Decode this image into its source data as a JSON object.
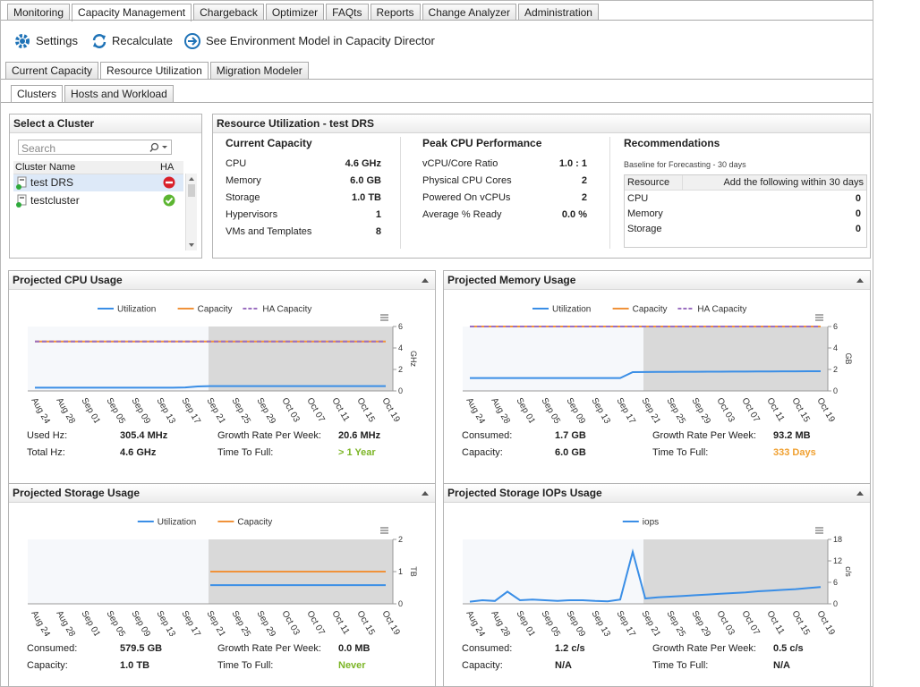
{
  "top_tabs": [
    "Monitoring",
    "Capacity Management",
    "Chargeback",
    "Optimizer",
    "FAQts",
    "Reports",
    "Change Analyzer",
    "Administration"
  ],
  "active_top_tab": 1,
  "toolbar": {
    "settings": "Settings",
    "recalculate": "Recalculate",
    "environment": "See Environment Model in Capacity Director"
  },
  "sub_tabs": [
    "Current Capacity",
    "Resource Utilization",
    "Migration Modeler"
  ],
  "active_sub_tab": 1,
  "inner_tabs": [
    "Clusters",
    "Hosts and Workload"
  ],
  "active_inner_tab": 0,
  "cluster_panel": {
    "title": "Select a Cluster",
    "search": "Search",
    "columns": [
      "Cluster Name",
      "HA"
    ],
    "rows": [
      {
        "name": "test DRS",
        "ha": "error",
        "selected": true
      },
      {
        "name": "testcluster",
        "ha": "ok",
        "selected": false
      }
    ]
  },
  "summary": {
    "title": "Resource Utilization - test DRS",
    "sections": [
      {
        "title": "Current Capacity",
        "rows": [
          [
            "CPU",
            "4.6 GHz"
          ],
          [
            "Memory",
            "6.0 GB"
          ],
          [
            "Storage",
            "1.0 TB"
          ],
          [
            "Hypervisors",
            "1"
          ],
          [
            "VMs and Templates",
            "8"
          ]
        ]
      },
      {
        "title": "Peak CPU Performance",
        "rows": [
          [
            "vCPU/Core Ratio",
            "1.0 : 1"
          ],
          [
            "Physical CPU Cores",
            "2"
          ],
          [
            "Powered On vCPUs",
            "2"
          ],
          [
            "Average % Ready",
            "0.0 %"
          ]
        ]
      }
    ],
    "recommendations": {
      "title": "Recommendations",
      "note": "Baseline for Forecasting - 30 days",
      "columns": [
        "Resource",
        "Add the following within 30 days"
      ],
      "rows": [
        [
          "CPU",
          "0"
        ],
        [
          "Memory",
          "0"
        ],
        [
          "Storage",
          "0"
        ]
      ]
    }
  },
  "chart_data": [
    {
      "type": "line",
      "title": "Projected CPU Usage",
      "y_label": "GHz",
      "categories": [
        "Aug 24",
        null,
        "Aug 28",
        null,
        "Sep 01",
        null,
        "Sep 05",
        null,
        "Sep 09",
        null,
        "Sep 13",
        null,
        "Sep 17",
        null,
        "Sep 21",
        null,
        "Sep 25",
        null,
        "Sep 29",
        null,
        "Oct 03",
        null,
        "Oct 07",
        null,
        "Oct 11",
        null,
        "Oct 15",
        null,
        "Oct 19"
      ],
      "forecast_start": 14,
      "ylim": [
        0,
        6
      ],
      "yticks": [
        0,
        2,
        4,
        6
      ],
      "series": [
        {
          "name": "Utilization",
          "color": "#3a8ee6",
          "dash": false,
          "values": [
            0.3,
            0.3,
            0.3,
            0.3,
            0.3,
            0.3,
            0.3,
            0.3,
            0.3,
            0.3,
            0.3,
            0.3,
            0.32,
            0.42,
            0.45,
            0.45,
            0.45,
            0.45,
            0.45,
            0.45,
            0.45,
            0.45,
            0.45,
            0.45,
            0.45,
            0.45,
            0.45,
            0.45,
            0.45
          ]
        },
        {
          "name": "Capacity",
          "color": "#f0923a",
          "dash": false,
          "values": [
            4.6,
            4.6,
            4.6,
            4.6,
            4.6,
            4.6,
            4.6,
            4.6,
            4.6,
            4.6,
            4.6,
            4.6,
            4.6,
            4.6,
            4.6,
            4.6,
            4.6,
            4.6,
            4.6,
            4.6,
            4.6,
            4.6,
            4.6,
            4.6,
            4.6,
            4.6,
            4.6,
            4.6,
            4.6
          ]
        },
        {
          "name": "HA Capacity",
          "color": "#9b6fc0",
          "dash": true,
          "values": [
            4.6,
            4.6,
            4.6,
            4.6,
            4.6,
            4.6,
            4.6,
            4.6,
            4.6,
            4.6,
            4.6,
            4.6,
            4.6,
            4.6,
            4.6,
            4.6,
            4.6,
            4.6,
            4.6,
            4.6,
            4.6,
            4.6,
            4.6,
            4.6,
            4.6,
            4.6,
            4.6,
            4.6,
            4.6
          ]
        }
      ],
      "stats": [
        {
          "label": "Used Hz:",
          "value": "305.4 MHz"
        },
        {
          "label": "Total Hz:",
          "value": "4.6 GHz"
        },
        {
          "label": "Growth Rate Per Week:",
          "value": "20.6 MHz"
        },
        {
          "label": "Time To Full:",
          "value": "> 1 Year",
          "color": "#7cb526"
        }
      ]
    },
    {
      "type": "line",
      "title": "Projected Memory Usage",
      "y_label": "GB",
      "categories": [
        "Aug 24",
        null,
        "Aug 28",
        null,
        "Sep 01",
        null,
        "Sep 05",
        null,
        "Sep 09",
        null,
        "Sep 13",
        null,
        "Sep 17",
        null,
        "Sep 21",
        null,
        "Sep 25",
        null,
        "Sep 29",
        null,
        "Oct 03",
        null,
        "Oct 07",
        null,
        "Oct 11",
        null,
        "Oct 15",
        null,
        "Oct 19"
      ],
      "forecast_start": 14,
      "ylim": [
        0,
        6
      ],
      "yticks": [
        0,
        2,
        4,
        6
      ],
      "series": [
        {
          "name": "Utilization",
          "color": "#3a8ee6",
          "dash": false,
          "values": [
            1.2,
            1.2,
            1.2,
            1.2,
            1.2,
            1.2,
            1.2,
            1.2,
            1.2,
            1.2,
            1.2,
            1.2,
            1.2,
            1.75,
            1.76,
            1.77,
            1.77,
            1.78,
            1.78,
            1.79,
            1.79,
            1.8,
            1.8,
            1.81,
            1.81,
            1.82,
            1.82,
            1.83,
            1.83
          ]
        },
        {
          "name": "Capacity",
          "color": "#f0923a",
          "dash": false,
          "values": [
            6,
            6,
            6,
            6,
            6,
            6,
            6,
            6,
            6,
            6,
            6,
            6,
            6,
            6,
            6,
            6,
            6,
            6,
            6,
            6,
            6,
            6,
            6,
            6,
            6,
            6,
            6,
            6,
            6
          ]
        },
        {
          "name": "HA Capacity",
          "color": "#9b6fc0",
          "dash": true,
          "values": [
            6,
            6,
            6,
            6,
            6,
            6,
            6,
            6,
            6,
            6,
            6,
            6,
            6,
            6,
            6,
            6,
            6,
            6,
            6,
            6,
            6,
            6,
            6,
            6,
            6,
            6,
            6,
            6,
            6
          ]
        }
      ],
      "stats": [
        {
          "label": "Consumed:",
          "value": "1.7 GB"
        },
        {
          "label": "Capacity:",
          "value": "6.0 GB"
        },
        {
          "label": "Growth Rate Per Week:",
          "value": "93.2 MB"
        },
        {
          "label": "Time To Full:",
          "value": "333 Days",
          "color": "#f0a030"
        }
      ]
    },
    {
      "type": "line",
      "title": "Projected Storage Usage",
      "y_label": "TB",
      "categories": [
        "Aug 24",
        null,
        "Aug 28",
        null,
        "Sep 01",
        null,
        "Sep 05",
        null,
        "Sep 09",
        null,
        "Sep 13",
        null,
        "Sep 17",
        null,
        "Sep 21",
        null,
        "Sep 25",
        null,
        "Sep 29",
        null,
        "Oct 03",
        null,
        "Oct 07",
        null,
        "Oct 11",
        null,
        "Oct 15",
        null,
        "Oct 19"
      ],
      "forecast_start": 14,
      "ylim": [
        0,
        2
      ],
      "yticks": [
        0,
        1,
        2
      ],
      "series": [
        {
          "name": "Utilization",
          "color": "#3a8ee6",
          "dash": false,
          "values": [
            null,
            null,
            null,
            null,
            null,
            null,
            null,
            null,
            null,
            null,
            null,
            null,
            null,
            null,
            0.58,
            0.58,
            0.58,
            0.58,
            0.58,
            0.58,
            0.58,
            0.58,
            0.58,
            0.58,
            0.58,
            0.58,
            0.58,
            0.58,
            0.58
          ]
        },
        {
          "name": "Capacity",
          "color": "#f0923a",
          "dash": false,
          "values": [
            null,
            null,
            null,
            null,
            null,
            null,
            null,
            null,
            null,
            null,
            null,
            null,
            null,
            null,
            1.0,
            1.0,
            1.0,
            1.0,
            1.0,
            1.0,
            1.0,
            1.0,
            1.0,
            1.0,
            1.0,
            1.0,
            1.0,
            1.0,
            1.0
          ]
        }
      ],
      "stats": [
        {
          "label": "Consumed:",
          "value": "579.5 GB"
        },
        {
          "label": "Capacity:",
          "value": "1.0 TB"
        },
        {
          "label": "Growth Rate Per Week:",
          "value": "0.0 MB"
        },
        {
          "label": "Time To Full:",
          "value": "Never",
          "color": "#7cb526"
        }
      ]
    },
    {
      "type": "line",
      "title": "Projected Storage IOPs Usage",
      "y_label": "c/s",
      "categories": [
        "Aug 24",
        null,
        "Aug 28",
        null,
        "Sep 01",
        null,
        "Sep 05",
        null,
        "Sep 09",
        null,
        "Sep 13",
        null,
        "Sep 17",
        null,
        "Sep 21",
        null,
        "Sep 25",
        null,
        "Sep 29",
        null,
        "Oct 03",
        null,
        "Oct 07",
        null,
        "Oct 11",
        null,
        "Oct 15",
        null,
        "Oct 19"
      ],
      "forecast_start": 14,
      "ylim": [
        0,
        18
      ],
      "yticks": [
        0,
        6,
        12,
        18
      ],
      "series": [
        {
          "name": "iops",
          "color": "#3a8ee6",
          "dash": false,
          "values": [
            0.6,
            1.0,
            0.8,
            3.4,
            1.0,
            1.2,
            1.0,
            0.8,
            1.0,
            1.0,
            0.8,
            0.7,
            1.2,
            14.5,
            1.5,
            1.8,
            2.0,
            2.2,
            2.4,
            2.6,
            2.8,
            3.0,
            3.2,
            3.5,
            3.7,
            3.9,
            4.1,
            4.4,
            4.7
          ]
        }
      ],
      "stats": [
        {
          "label": "Consumed:",
          "value": "1.2 c/s"
        },
        {
          "label": "Capacity:",
          "value": "N/A"
        },
        {
          "label": "Growth Rate Per Week:",
          "value": "0.5 c/s"
        },
        {
          "label": "Time To Full:",
          "value": "N/A"
        }
      ]
    }
  ]
}
